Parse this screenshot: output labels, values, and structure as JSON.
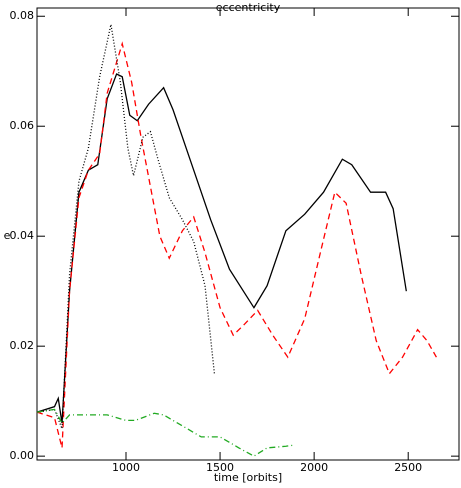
{
  "chart_data": {
    "type": "line",
    "title": "eccentricity",
    "x_label": "time [orbits]",
    "y_label": "e",
    "xlim": [
      527,
      2770
    ],
    "ylim": [
      -0.0007,
      0.0815
    ],
    "xticks": [
      1000,
      1500,
      2000,
      2500
    ],
    "yticks": [
      {
        "value": 0,
        "label": "0.00"
      },
      {
        "value": 0.02,
        "label": "0.02"
      },
      {
        "value": 0.04,
        "label": "0.04"
      },
      {
        "value": 0.06,
        "label": "0.06"
      },
      {
        "value": 0.08,
        "label": "0.08"
      }
    ],
    "series": [
      {
        "color": "#000000",
        "dash": "solid",
        "x": [
          527,
          620,
          640,
          660,
          700,
          750,
          800,
          850,
          900,
          950,
          980,
          1020,
          1060,
          1120,
          1200,
          1250,
          1350,
          1450,
          1550,
          1680,
          1750,
          1850,
          1950,
          2050,
          2150,
          2200,
          2300,
          2380,
          2420,
          2490
        ],
        "values": [
          0.008,
          0.009,
          0.0105,
          0.006,
          0.03,
          0.048,
          0.052,
          0.053,
          0.065,
          0.0695,
          0.069,
          0.062,
          0.061,
          0.064,
          0.067,
          0.063,
          0.053,
          0.043,
          0.034,
          0.027,
          0.031,
          0.041,
          0.044,
          0.048,
          0.054,
          0.053,
          0.048,
          0.048,
          0.045,
          0.03
        ]
      },
      {
        "color": "#ff0000",
        "dash": "dashed",
        "x": [
          527,
          620,
          660,
          700,
          750,
          800,
          860,
          900,
          980,
          1030,
          1080,
          1130,
          1180,
          1230,
          1300,
          1360,
          1420,
          1500,
          1570,
          1630,
          1700,
          1780,
          1860,
          1950,
          2040,
          2110,
          2170,
          2250,
          2330,
          2400,
          2470,
          2550,
          2600,
          2650
        ],
        "values": [
          0.008,
          0.007,
          0.0015,
          0.03,
          0.047,
          0.052,
          0.055,
          0.066,
          0.075,
          0.068,
          0.058,
          0.049,
          0.04,
          0.036,
          0.041,
          0.0435,
          0.037,
          0.027,
          0.022,
          0.024,
          0.0265,
          0.022,
          0.018,
          0.025,
          0.038,
          0.048,
          0.046,
          0.033,
          0.021,
          0.015,
          0.018,
          0.023,
          0.021,
          0.018
        ]
      },
      {
        "color": "#000000",
        "dash": "dotted",
        "x": [
          527,
          620,
          660,
          700,
          750,
          800,
          860,
          920,
          970,
          1010,
          1040,
          1090,
          1130,
          1170,
          1230,
          1300,
          1360,
          1420,
          1470
        ],
        "values": [
          0.008,
          0.0085,
          0.005,
          0.033,
          0.05,
          0.056,
          0.069,
          0.0785,
          0.068,
          0.056,
          0.051,
          0.058,
          0.059,
          0.054,
          0.047,
          0.043,
          0.039,
          0.031,
          0.015
        ]
      },
      {
        "color": "#22aa22",
        "dash": "dashdot",
        "x": [
          527,
          620,
          660,
          700,
          800,
          900,
          1000,
          1050,
          1150,
          1200,
          1300,
          1400,
          1500,
          1600,
          1680,
          1750,
          1850,
          1890
        ],
        "values": [
          0.008,
          0.0085,
          0.006,
          0.0075,
          0.0075,
          0.0075,
          0.0065,
          0.0065,
          0.0078,
          0.0075,
          0.0055,
          0.0035,
          0.0035,
          0.0015,
          0,
          0.0015,
          0.0018,
          0.002
        ]
      }
    ]
  }
}
